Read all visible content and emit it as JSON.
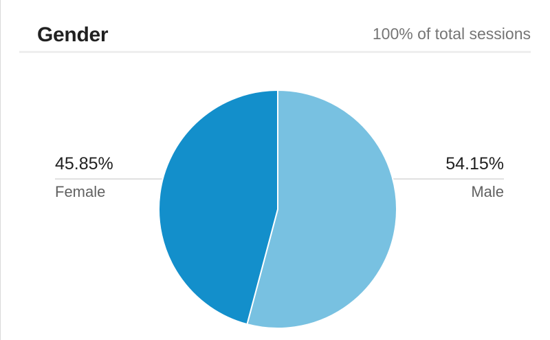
{
  "card": {
    "title": "Gender",
    "subtitle": "100% of total sessions"
  },
  "chart_data": {
    "type": "pie",
    "categories": [
      "Female",
      "Male"
    ],
    "values": [
      45.85,
      54.15
    ],
    "value_labels": [
      "45.85%",
      "54.15%"
    ],
    "colors": [
      "#138FCB",
      "#78C1E1"
    ],
    "start_angle_deg": 0,
    "direction": "clockwise",
    "first_slice_drawn": "Male"
  }
}
